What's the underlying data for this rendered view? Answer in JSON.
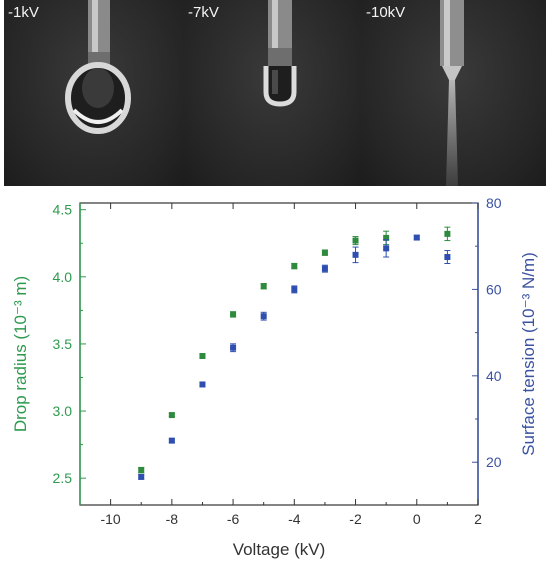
{
  "photos": [
    {
      "label": "-1kV",
      "state": "pendant-drop"
    },
    {
      "label": "-7kV",
      "state": "elongated-drop"
    },
    {
      "label": "-10kV",
      "state": "jet"
    }
  ],
  "chart_data": {
    "type": "scatter",
    "xlabel": "Voltage (kV)",
    "ylabel_left": "Drop radius (10⁻³ m)",
    "ylabel_right": "Surface tension (10⁻³ N/m)",
    "xlim": [
      -11,
      2
    ],
    "ylim_left": [
      2.3,
      4.55
    ],
    "ylim_right": [
      10.1,
      80
    ],
    "x_ticks": [
      -10,
      -8,
      -6,
      -4,
      -2,
      0,
      2
    ],
    "y_left_ticks": [
      2.5,
      3.0,
      3.5,
      4.0,
      4.5
    ],
    "y_right_ticks": [
      20,
      40,
      60,
      80
    ],
    "x_tick_labels": [
      "-10",
      "-8",
      "-6",
      "-4",
      "-2",
      "0",
      "2"
    ],
    "y_left_tick_labels": [
      "2.5",
      "3.0",
      "3.5",
      "4.0",
      "4.5"
    ],
    "y_right_tick_labels": [
      "20",
      "40",
      "60",
      "80"
    ],
    "colors": {
      "left_axis": "#2e9a4e",
      "right_axis": "#3a52a0",
      "series_left": "#2e8b3e",
      "series_right": "#2f4fb0"
    },
    "series": [
      {
        "axis": "left",
        "x": [
          -9,
          -8,
          -7,
          -6,
          -5,
          -4,
          -3,
          -2,
          -1,
          1
        ],
        "y": [
          2.56,
          2.97,
          3.41,
          3.72,
          3.93,
          4.08,
          4.18,
          4.27,
          4.29,
          4.32
        ],
        "err": [
          0.02,
          0.01,
          0.01,
          0.02,
          0.02,
          0.02,
          0.02,
          0.03,
          0.05,
          0.05
        ]
      },
      {
        "axis": "right",
        "x": [
          -9,
          -8,
          -7,
          -6,
          -5,
          -4,
          -3,
          -2,
          -1,
          0,
          1
        ],
        "y": [
          16.6,
          25.0,
          38.0,
          46.5,
          53.8,
          60.0,
          64.8,
          68.0,
          69.5,
          72.0,
          67.5
        ],
        "err": [
          0.5,
          0.4,
          0.5,
          0.9,
          0.9,
          0.8,
          0.8,
          1.8,
          2.0,
          0.4,
          1.5
        ]
      }
    ]
  }
}
